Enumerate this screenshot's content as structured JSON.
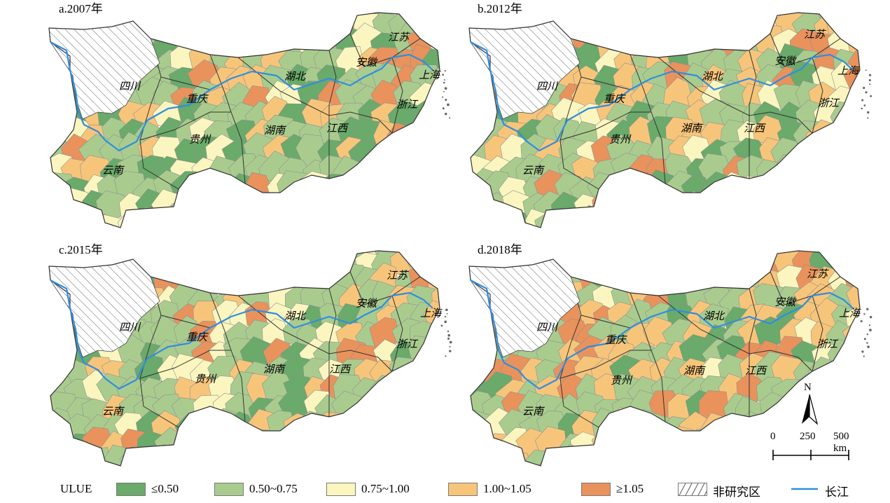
{
  "panels": [
    {
      "title": "a.2007年",
      "provinces": [
        "四川",
        "重庆",
        "贵州",
        "云南",
        "湖北",
        "湖南",
        "江西",
        "安徽",
        "江苏",
        "上海",
        "浙江"
      ],
      "category_mix": [
        0.18,
        0.4,
        0.14,
        0.18,
        0.1
      ]
    },
    {
      "title": "b.2012年",
      "provinces": [
        "四川",
        "重庆",
        "贵州",
        "云南",
        "湖北",
        "湖南",
        "江西",
        "安徽",
        "江苏",
        "上海",
        "浙江"
      ],
      "category_mix": [
        0.1,
        0.34,
        0.18,
        0.26,
        0.12
      ]
    },
    {
      "title": "c.2015年",
      "provinces": [
        "四川",
        "重庆",
        "贵州",
        "云南",
        "湖北",
        "湖南",
        "江西",
        "安徽",
        "江苏",
        "上海",
        "浙江"
      ],
      "category_mix": [
        0.14,
        0.42,
        0.16,
        0.2,
        0.08
      ]
    },
    {
      "title": "d.2018年",
      "provinces": [
        "四川",
        "重庆",
        "贵州",
        "云南",
        "湖北",
        "湖南",
        "江西",
        "安徽",
        "江苏",
        "上海",
        "浙江"
      ],
      "category_mix": [
        0.08,
        0.36,
        0.1,
        0.3,
        0.16
      ]
    }
  ],
  "legend": {
    "title": "ULUE",
    "items": [
      {
        "label": "≤0.50",
        "color": "#6aaa6a"
      },
      {
        "label": "0.50~0.75",
        "color": "#a9cc8e"
      },
      {
        "label": "0.75~1.00",
        "color": "#fbf6bf"
      },
      {
        "label": "1.00~1.05",
        "color": "#f7c57a"
      },
      {
        "label": "≥1.05",
        "color": "#e9925c"
      },
      {
        "label": "非研究区",
        "pattern": "hatch"
      },
      {
        "label": "长江",
        "color": "#2f8ee0"
      }
    ]
  },
  "north_label": "N",
  "scale_bar": {
    "labels": [
      "0",
      "250",
      "500 km"
    ]
  }
}
